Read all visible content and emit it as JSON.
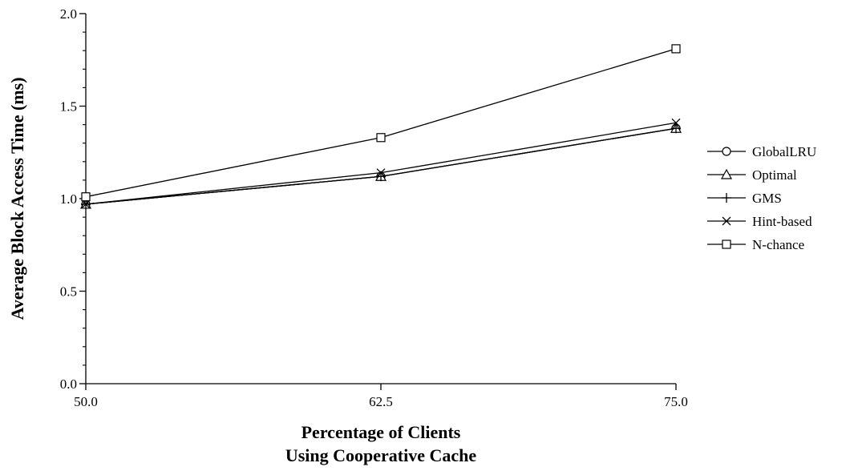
{
  "chart_data": {
    "type": "line",
    "x": [
      50.0,
      62.5,
      75.0
    ],
    "x_tick_labels": [
      "50.0",
      "62.5",
      "75.0"
    ],
    "y_tick_labels": [
      "0.0",
      "0.5",
      "1.0",
      "1.5",
      "2.0"
    ],
    "y_ticks": [
      0.0,
      0.5,
      1.0,
      1.5,
      2.0
    ],
    "xlim": [
      50.0,
      75.0
    ],
    "ylim": [
      0.0,
      2.0
    ],
    "xlabel": [
      "Percentage of Clients",
      "Using Cooperative Cache"
    ],
    "ylabel": "Average Block Access Time (ms)",
    "grid": false,
    "legend_position": "right",
    "series": [
      {
        "name": "GlobalLRU",
        "marker": "circle",
        "values": [
          0.97,
          1.12,
          1.38
        ]
      },
      {
        "name": "Optimal",
        "marker": "triangle",
        "values": [
          0.97,
          1.12,
          1.38
        ]
      },
      {
        "name": "GMS",
        "marker": "plus",
        "values": [
          0.97,
          1.12,
          1.38
        ]
      },
      {
        "name": "Hint-based",
        "marker": "x",
        "values": [
          0.97,
          1.14,
          1.41
        ]
      },
      {
        "name": "N-chance",
        "marker": "square",
        "values": [
          1.01,
          1.33,
          1.81
        ]
      }
    ]
  }
}
